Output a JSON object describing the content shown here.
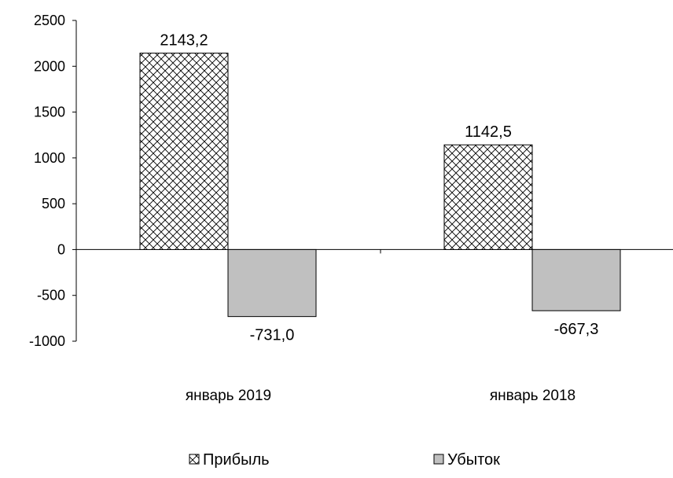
{
  "chart_data": {
    "type": "bar",
    "categories": [
      "январь 2019",
      "январь 2018"
    ],
    "series": [
      {
        "name": "Прибыль",
        "values": [
          2143.2,
          1142.5
        ],
        "labels": [
          "2143,2",
          "1142,5"
        ],
        "color": "#ffffff",
        "pattern": "crosshatch"
      },
      {
        "name": "Убыток",
        "values": [
          -731.0,
          -667.3
        ],
        "labels": [
          "-731,0",
          "-667,3"
        ],
        "color": "#c0c0c0",
        "pattern": "solid"
      }
    ],
    "yticks": [
      2500,
      2000,
      1500,
      1000,
      500,
      0,
      -500,
      -1000
    ],
    "ytick_labels": [
      "2500",
      "2000",
      "1500",
      "1000",
      "500",
      "0",
      "-500",
      "-1000"
    ],
    "ylim": [
      -1000,
      2500
    ],
    "grid": false,
    "legend": "bottom"
  }
}
